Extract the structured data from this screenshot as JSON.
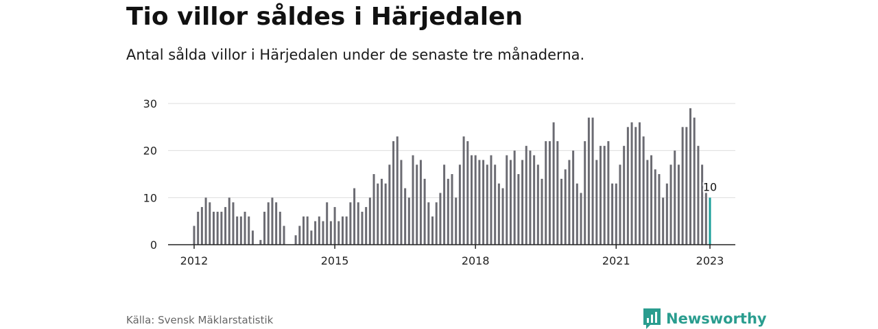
{
  "title": "Tio villor såldes i Härjedalen",
  "subtitle": "Antal sålda villor i Härjedalen under de senaste tre månaderna.",
  "source": "Källa: Svensk Mäklarstatistik",
  "brand": "Newsworthy",
  "colors": {
    "bar": "#6b6b72",
    "highlight": "#1a9e9a",
    "grid": "#dddddd",
    "brand": "#2a9d8f"
  },
  "chart_data": {
    "type": "bar",
    "x_start": "2012-01",
    "frequency": "monthly",
    "values": [
      4,
      7,
      8,
      10,
      9,
      7,
      7,
      7,
      8,
      10,
      9,
      6,
      6,
      7,
      6,
      3,
      0,
      1,
      7,
      9,
      10,
      9,
      7,
      4,
      0,
      0,
      2,
      4,
      6,
      6,
      3,
      5,
      6,
      5,
      9,
      5,
      8,
      5,
      6,
      6,
      9,
      12,
      9,
      7,
      8,
      10,
      15,
      13,
      14,
      13,
      17,
      22,
      23,
      18,
      12,
      10,
      19,
      17,
      18,
      14,
      9,
      6,
      9,
      11,
      17,
      14,
      15,
      10,
      17,
      23,
      22,
      19,
      19,
      18,
      18,
      17,
      19,
      17,
      13,
      12,
      19,
      18,
      20,
      15,
      18,
      21,
      20,
      19,
      17,
      14,
      22,
      22,
      26,
      22,
      14,
      16,
      18,
      20,
      13,
      11,
      22,
      27,
      27,
      18,
      21,
      21,
      22,
      13,
      13,
      17,
      21,
      25,
      26,
      25,
      26,
      23,
      18,
      19,
      16,
      15,
      10,
      13,
      17,
      20,
      17,
      25,
      25,
      29,
      27,
      21,
      17,
      11,
      10
    ],
    "highlight_last": true,
    "highlight_label": "10",
    "x_ticks": [
      "2012",
      "2015",
      "2018",
      "2021",
      "2023"
    ],
    "y_ticks": [
      "0",
      "10",
      "20",
      "30"
    ],
    "ylim": [
      0,
      30
    ],
    "grid": true
  }
}
